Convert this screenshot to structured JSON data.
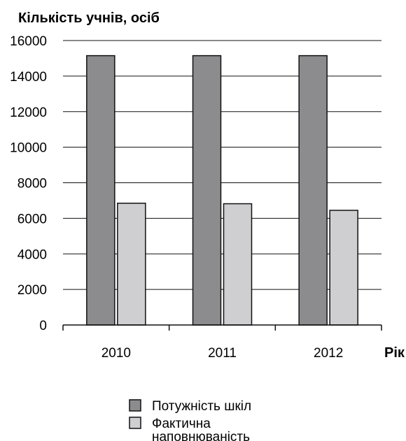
{
  "chart_data": {
    "type": "bar",
    "title": "",
    "ylabel": "Кількість учнів, осіб",
    "xlabel": "Рік",
    "categories": [
      "2010",
      "2011",
      "2012"
    ],
    "ylim": [
      0,
      16000
    ],
    "yticks": [
      "0",
      "2000",
      "4000",
      "6000",
      "8000",
      "10000",
      "12000",
      "14000",
      "16000"
    ],
    "grid": true,
    "legend_position": "bottom",
    "series": [
      {
        "name": "Потужність шкіл",
        "values": [
          15150,
          15150,
          15150
        ],
        "color": "#8c8c8e"
      },
      {
        "name": "Фактична наповнюваність",
        "values": [
          6850,
          6820,
          6450
        ],
        "color": "#cfcfd1"
      }
    ]
  },
  "legend": {
    "items": [
      {
        "line1": "Потужність шкіл",
        "line2": ""
      },
      {
        "line1": "Фактична",
        "line2": "наповнюваність"
      }
    ]
  }
}
